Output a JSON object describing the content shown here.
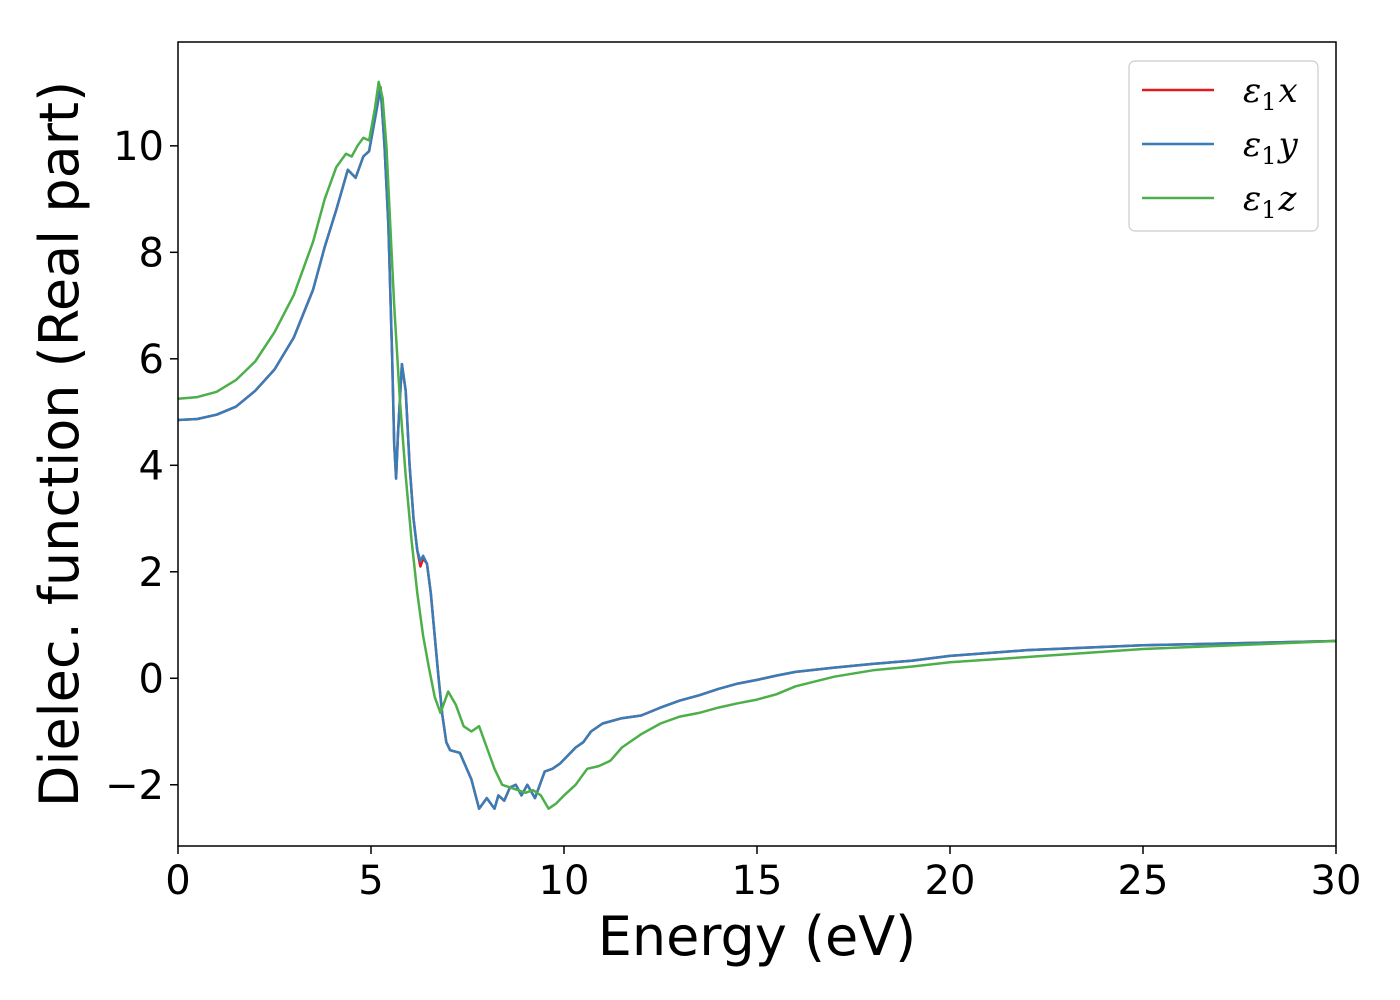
{
  "chart_data": {
    "type": "line",
    "title": "",
    "xlabel": "Energy (eV)",
    "ylabel": "Dielec. function (Real part)",
    "xlim": [
      0,
      30
    ],
    "ylim": [
      -3.15,
      11.95
    ],
    "xticks": [
      0,
      5,
      10,
      15,
      20,
      25,
      30
    ],
    "yticks": [
      -2,
      0,
      2,
      4,
      6,
      8,
      10
    ],
    "xtick_labels": [
      "0",
      "5",
      "10",
      "15",
      "20",
      "25",
      "30"
    ],
    "ytick_labels": [
      "−2",
      "0",
      "2",
      "4",
      "6",
      "8",
      "10"
    ],
    "grid": false,
    "legend_position": "top-right",
    "series": [
      {
        "name": "ε₁x",
        "label_base": "ε",
        "label_sub": "1",
        "label_suffix": "x",
        "color": "#e41a1c",
        "x": [
          0,
          0.5,
          1,
          1.5,
          2,
          2.5,
          3,
          3.5,
          3.8,
          4.1,
          4.4,
          4.6,
          4.8,
          4.95,
          5.1,
          5.25,
          5.35,
          5.45,
          5.55,
          5.6,
          5.65,
          5.7,
          5.8,
          5.9,
          6.0,
          6.1,
          6.2,
          6.28,
          6.35,
          6.45,
          6.55,
          6.65,
          6.75,
          6.85,
          6.95,
          7.05,
          7.3,
          7.6,
          7.8,
          8.0,
          8.2,
          8.3,
          8.45,
          8.6,
          8.75,
          8.9,
          9.05,
          9.25,
          9.5,
          9.7,
          9.9,
          10.1,
          10.3,
          10.5,
          10.7,
          11.0,
          11.5,
          12.0,
          12.5,
          13.0,
          13.5,
          14.0,
          14.5,
          15.0,
          15.5,
          16.0,
          17.0,
          18.0,
          19.0,
          20.0,
          22.0,
          25.0,
          30.0
        ],
        "y": [
          4.85,
          4.87,
          4.95,
          5.1,
          5.4,
          5.8,
          6.4,
          7.3,
          8.1,
          8.8,
          9.55,
          9.4,
          9.8,
          9.9,
          10.5,
          11.1,
          10.0,
          8.5,
          6.0,
          4.4,
          3.75,
          4.6,
          5.9,
          5.4,
          4.0,
          3.0,
          2.4,
          2.1,
          2.25,
          2.15,
          1.6,
          0.8,
          0.0,
          -0.7,
          -1.2,
          -1.35,
          -1.4,
          -1.9,
          -2.45,
          -2.25,
          -2.45,
          -2.2,
          -2.3,
          -2.05,
          -2.0,
          -2.2,
          -2.0,
          -2.25,
          -1.75,
          -1.7,
          -1.6,
          -1.45,
          -1.3,
          -1.2,
          -1.0,
          -0.85,
          -0.75,
          -0.7,
          -0.55,
          -0.42,
          -0.32,
          -0.2,
          -0.1,
          -0.03,
          0.05,
          0.12,
          0.2,
          0.27,
          0.33,
          0.42,
          0.53,
          0.62,
          0.7
        ]
      },
      {
        "name": "ε₁y",
        "label_base": "ε",
        "label_sub": "1",
        "label_suffix": "y",
        "color": "#377eb8",
        "x": [
          0,
          0.5,
          1,
          1.5,
          2,
          2.5,
          3,
          3.5,
          3.8,
          4.1,
          4.4,
          4.6,
          4.8,
          4.95,
          5.1,
          5.25,
          5.35,
          5.45,
          5.55,
          5.6,
          5.65,
          5.7,
          5.8,
          5.9,
          6.0,
          6.1,
          6.2,
          6.28,
          6.35,
          6.45,
          6.55,
          6.65,
          6.75,
          6.85,
          6.95,
          7.05,
          7.3,
          7.6,
          7.8,
          8.0,
          8.2,
          8.3,
          8.45,
          8.6,
          8.75,
          8.9,
          9.05,
          9.25,
          9.5,
          9.7,
          9.9,
          10.1,
          10.3,
          10.5,
          10.7,
          11.0,
          11.5,
          12.0,
          12.5,
          13.0,
          13.5,
          14.0,
          14.5,
          15.0,
          15.5,
          16.0,
          17.0,
          18.0,
          19.0,
          20.0,
          22.0,
          25.0,
          30.0
        ],
        "y": [
          4.85,
          4.87,
          4.95,
          5.1,
          5.4,
          5.8,
          6.4,
          7.3,
          8.1,
          8.8,
          9.55,
          9.4,
          9.8,
          9.9,
          10.5,
          11.1,
          10.0,
          8.5,
          6.0,
          4.4,
          3.75,
          4.6,
          5.9,
          5.4,
          4.0,
          3.0,
          2.4,
          2.2,
          2.3,
          2.15,
          1.6,
          0.8,
          0.0,
          -0.7,
          -1.2,
          -1.35,
          -1.4,
          -1.9,
          -2.45,
          -2.25,
          -2.45,
          -2.2,
          -2.3,
          -2.05,
          -2.0,
          -2.2,
          -2.0,
          -2.25,
          -1.75,
          -1.7,
          -1.6,
          -1.45,
          -1.3,
          -1.2,
          -1.0,
          -0.85,
          -0.75,
          -0.7,
          -0.55,
          -0.42,
          -0.32,
          -0.2,
          -0.1,
          -0.03,
          0.05,
          0.12,
          0.2,
          0.27,
          0.33,
          0.42,
          0.53,
          0.62,
          0.7
        ]
      },
      {
        "name": "ε₁z",
        "label_base": "ε",
        "label_sub": "1",
        "label_suffix": "z",
        "color": "#4daf4a",
        "x": [
          0,
          0.5,
          1,
          1.5,
          2,
          2.5,
          3,
          3.5,
          3.8,
          4.1,
          4.35,
          4.5,
          4.65,
          4.8,
          4.95,
          5.1,
          5.2,
          5.3,
          5.4,
          5.5,
          5.6,
          5.75,
          5.9,
          6.05,
          6.2,
          6.35,
          6.5,
          6.65,
          6.8,
          7.0,
          7.2,
          7.4,
          7.6,
          7.8,
          8.0,
          8.2,
          8.4,
          8.6,
          8.8,
          9.0,
          9.2,
          9.4,
          9.6,
          9.8,
          10.0,
          10.3,
          10.6,
          10.9,
          11.2,
          11.5,
          12.0,
          12.5,
          13.0,
          13.5,
          14.0,
          14.5,
          15.0,
          15.5,
          16.0,
          17.0,
          18.0,
          19.0,
          20.0,
          22.0,
          25.0,
          30.0
        ],
        "y": [
          5.25,
          5.28,
          5.38,
          5.6,
          5.95,
          6.5,
          7.2,
          8.2,
          9.0,
          9.6,
          9.85,
          9.8,
          10.0,
          10.15,
          10.1,
          10.7,
          11.2,
          10.9,
          10.0,
          8.5,
          7.0,
          5.2,
          3.8,
          2.6,
          1.6,
          0.8,
          0.2,
          -0.35,
          -0.65,
          -0.25,
          -0.5,
          -0.9,
          -1.0,
          -0.9,
          -1.3,
          -1.7,
          -2.0,
          -2.05,
          -2.1,
          -2.15,
          -2.1,
          -2.2,
          -2.45,
          -2.35,
          -2.2,
          -2.0,
          -1.7,
          -1.65,
          -1.55,
          -1.3,
          -1.05,
          -0.85,
          -0.72,
          -0.65,
          -0.55,
          -0.47,
          -0.4,
          -0.3,
          -0.15,
          0.03,
          0.15,
          0.22,
          0.3,
          0.4,
          0.55,
          0.7
        ]
      }
    ]
  }
}
